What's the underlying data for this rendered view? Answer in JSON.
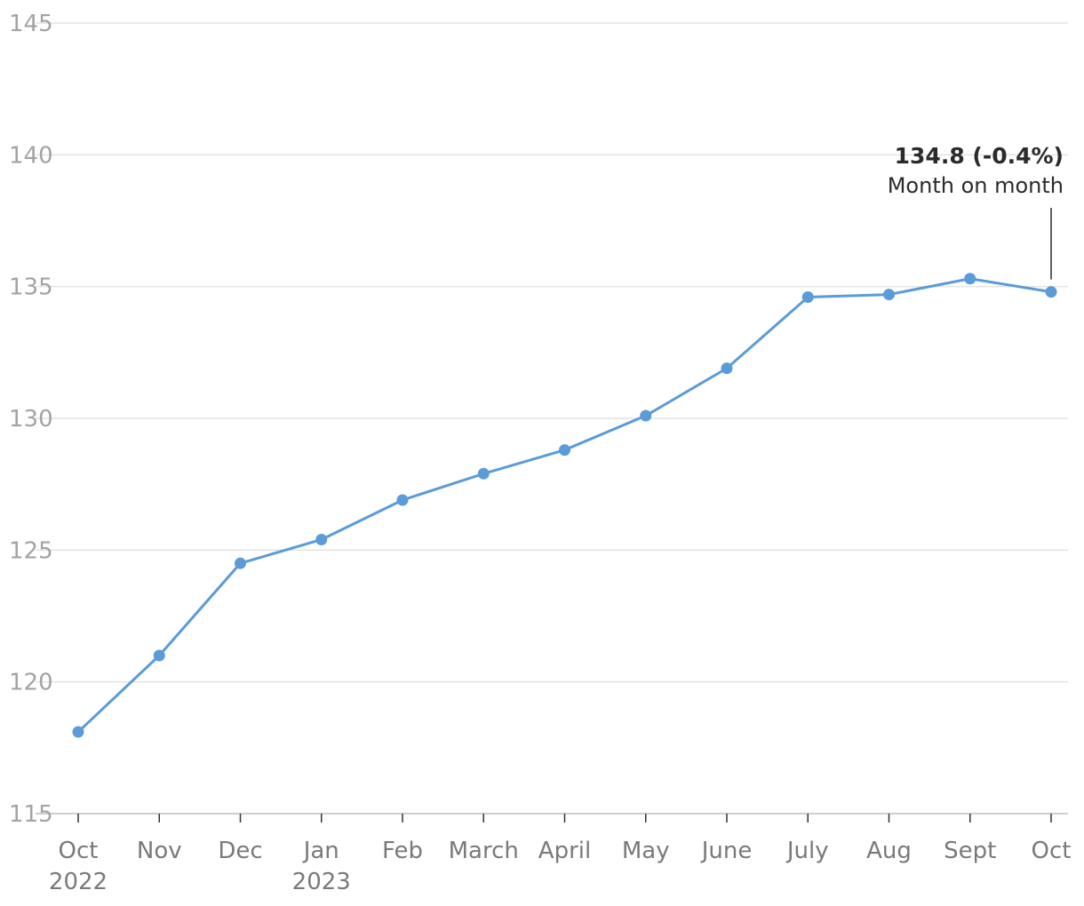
{
  "chart_data": {
    "type": "line",
    "categories": [
      "Oct",
      "Nov",
      "Dec",
      "Jan",
      "Feb",
      "March",
      "April",
      "May",
      "June",
      "July",
      "Aug",
      "Sept",
      "Oct"
    ],
    "category_years": [
      "2022",
      "",
      "",
      "2023",
      "",
      "",
      "",
      "",
      "",
      "",
      "",
      "",
      ""
    ],
    "series": [
      {
        "values": [
          118.1,
          121.0,
          124.5,
          125.4,
          126.9,
          127.9,
          128.8,
          130.1,
          131.9,
          134.6,
          134.7,
          135.3,
          134.8
        ],
        "color": "#5b9bd8"
      }
    ],
    "ylim": [
      115,
      145
    ],
    "yticks": [
      "115",
      "120",
      "125",
      "130",
      "135",
      "140",
      "145"
    ],
    "grid": true,
    "annotation": {
      "value_text": "134.8 (-0.4%)",
      "sub_text": "Month on month",
      "point_index": 12
    }
  }
}
